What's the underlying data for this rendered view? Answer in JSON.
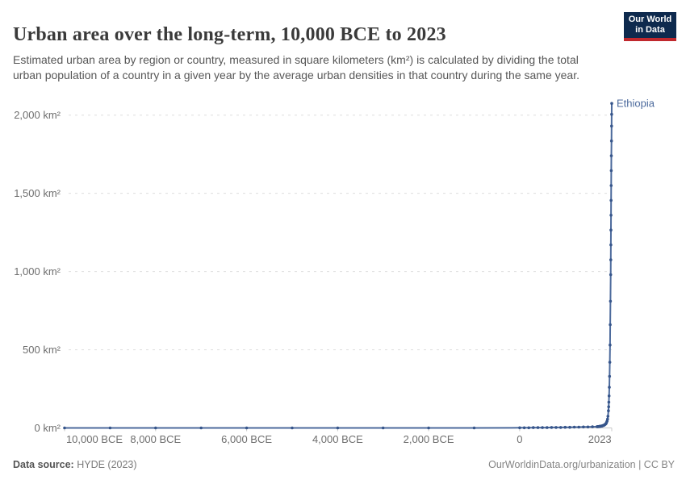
{
  "header": {
    "title": "Urban area over the long-term, 10,000 BCE to 2023",
    "subtitle": "Estimated urban area by region or country, measured in square kilometers (km²) is calculated by dividing the total urban population of a country in a given year by the average urban densities in that country during the same year.",
    "logo": {
      "line1": "Our World",
      "line2": "in Data",
      "bg_color": "#0e2a4e",
      "accent_color": "#c0282d"
    }
  },
  "footer": {
    "source_label": "Data source:",
    "source_value": " HYDE (2023)",
    "link": "OurWorldinData.org/urbanization | CC BY"
  },
  "chart_data": {
    "type": "line",
    "title": "Urban area over the long-term, 10,000 BCE to 2023",
    "xlabel": "",
    "ylabel": "km²",
    "xlim": [
      -10000,
      2023
    ],
    "ylim": [
      0,
      2075
    ],
    "grid": "dashed-horizontal",
    "legend_position": "end-of-line-label",
    "x_ticks": [
      {
        "year": -10000,
        "label": "10,000 BCE"
      },
      {
        "year": -8000,
        "label": "8,000 BCE"
      },
      {
        "year": -6000,
        "label": "6,000 BCE"
      },
      {
        "year": -4000,
        "label": "4,000 BCE"
      },
      {
        "year": -2000,
        "label": "2,000 BCE"
      },
      {
        "year": 0,
        "label": "0"
      },
      {
        "year": 2023,
        "label": "2023"
      }
    ],
    "y_ticks": [
      {
        "value": 0,
        "label": "0 km²"
      },
      {
        "value": 500,
        "label": "500 km²"
      },
      {
        "value": 1000,
        "label": "1,000 km²"
      },
      {
        "value": 1500,
        "label": "1,500 km²"
      },
      {
        "value": 2000,
        "label": "2,000 km²"
      }
    ],
    "series": [
      {
        "name": "Ethiopia",
        "color": "#4c6a9c",
        "marker_color": "#36558b",
        "label_color": "#4c6a9c",
        "x": [
          -10000,
          -9000,
          -8000,
          -7000,
          -6000,
          -5000,
          -4000,
          -3000,
          -2000,
          -1000,
          0,
          100,
          200,
          300,
          400,
          500,
          600,
          700,
          800,
          900,
          1000,
          1100,
          1200,
          1300,
          1400,
          1500,
          1600,
          1700,
          1710,
          1720,
          1730,
          1740,
          1750,
          1760,
          1770,
          1780,
          1790,
          1800,
          1810,
          1820,
          1830,
          1840,
          1850,
          1860,
          1870,
          1880,
          1890,
          1900,
          1910,
          1920,
          1930,
          1940,
          1950,
          1955,
          1960,
          1965,
          1970,
          1975,
          1980,
          1985,
          1990,
          1995,
          2000,
          2001,
          2003,
          2005,
          2007,
          2009,
          2011,
          2013,
          2015,
          2017,
          2019,
          2021,
          2023
        ],
        "y": [
          0,
          0,
          0,
          0,
          0,
          0,
          0,
          0,
          0,
          0,
          1,
          1,
          1,
          2,
          2,
          2,
          2,
          3,
          3,
          3,
          4,
          4,
          5,
          5,
          6,
          6,
          7,
          8,
          8,
          9,
          9,
          9,
          10,
          10,
          11,
          11,
          12,
          12,
          13,
          14,
          15,
          16,
          17,
          19,
          21,
          23,
          26,
          30,
          36,
          44,
          56,
          75,
          110,
          135,
          165,
          205,
          260,
          330,
          420,
          530,
          660,
          810,
          980,
          1075,
          1170,
          1265,
          1360,
          1455,
          1550,
          1645,
          1740,
          1835,
          1930,
          2005,
          2075
        ]
      }
    ],
    "axis_color": "#c8c8c8",
    "gridline_color": "#dedede",
    "tick_label_color": "#6e6e6e"
  }
}
